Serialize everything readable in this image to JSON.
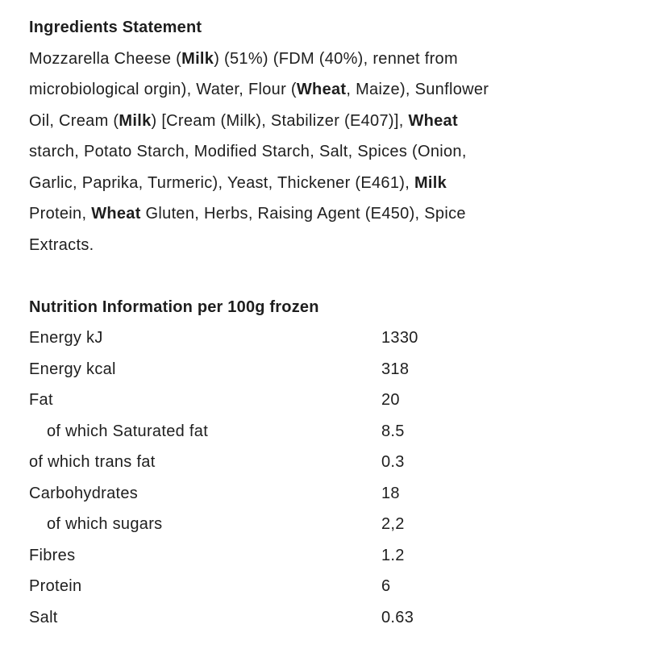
{
  "text_color": "#1e1e1e",
  "background_color": "#ffffff",
  "ingredients": {
    "heading": "Ingredients Statement",
    "lines": [
      [
        {
          "text": "Mozzarella Cheese ("
        },
        {
          "text": "Milk",
          "bold": true
        },
        {
          "text": ") (51%) (FDM (40%), rennet from"
        }
      ],
      [
        {
          "text": "microbiological orgin), Water, Flour ("
        },
        {
          "text": "Wheat",
          "bold": true
        },
        {
          "text": ", Maize), Sunflower"
        }
      ],
      [
        {
          "text": "Oil, Cream ("
        },
        {
          "text": "Milk",
          "bold": true
        },
        {
          "text": ") [Cream (Milk), Stabilizer (E407)], "
        },
        {
          "text": "Wheat",
          "bold": true
        }
      ],
      [
        {
          "text": "starch, Potato Starch, Modified Starch, Salt, Spices (Onion,"
        }
      ],
      [
        {
          "text": "Garlic, Paprika, Turmeric), Yeast, Thickener (E461), "
        },
        {
          "text": "Milk",
          "bold": true
        }
      ],
      [
        {
          "text": "Protein, "
        },
        {
          "text": "Wheat",
          "bold": true
        },
        {
          "text": " Gluten, Herbs, Raising Agent (E450), Spice"
        }
      ],
      [
        {
          "text": "Extracts."
        }
      ]
    ]
  },
  "nutrition": {
    "heading": "Nutrition Information per 100g frozen",
    "rows": [
      {
        "label": "Energy kJ",
        "value": "1330",
        "indent": false
      },
      {
        "label": "Energy kcal",
        "value": "318",
        "indent": false
      },
      {
        "label": "Fat",
        "value": "20",
        "indent": false
      },
      {
        "label": "of which Saturated fat",
        "value": "8.5",
        "indent": true
      },
      {
        "label": "of which trans fat",
        "value": "0.3",
        "indent": false
      },
      {
        "label": "Carbohydrates",
        "value": "18",
        "indent": false
      },
      {
        "label": "of which sugars",
        "value": "2,2",
        "indent": true
      },
      {
        "label": "Fibres",
        "value": "1.2",
        "indent": false
      },
      {
        "label": "Protein",
        "value": "6",
        "indent": false
      },
      {
        "label": "Salt",
        "value": "0.63",
        "indent": false
      }
    ]
  }
}
